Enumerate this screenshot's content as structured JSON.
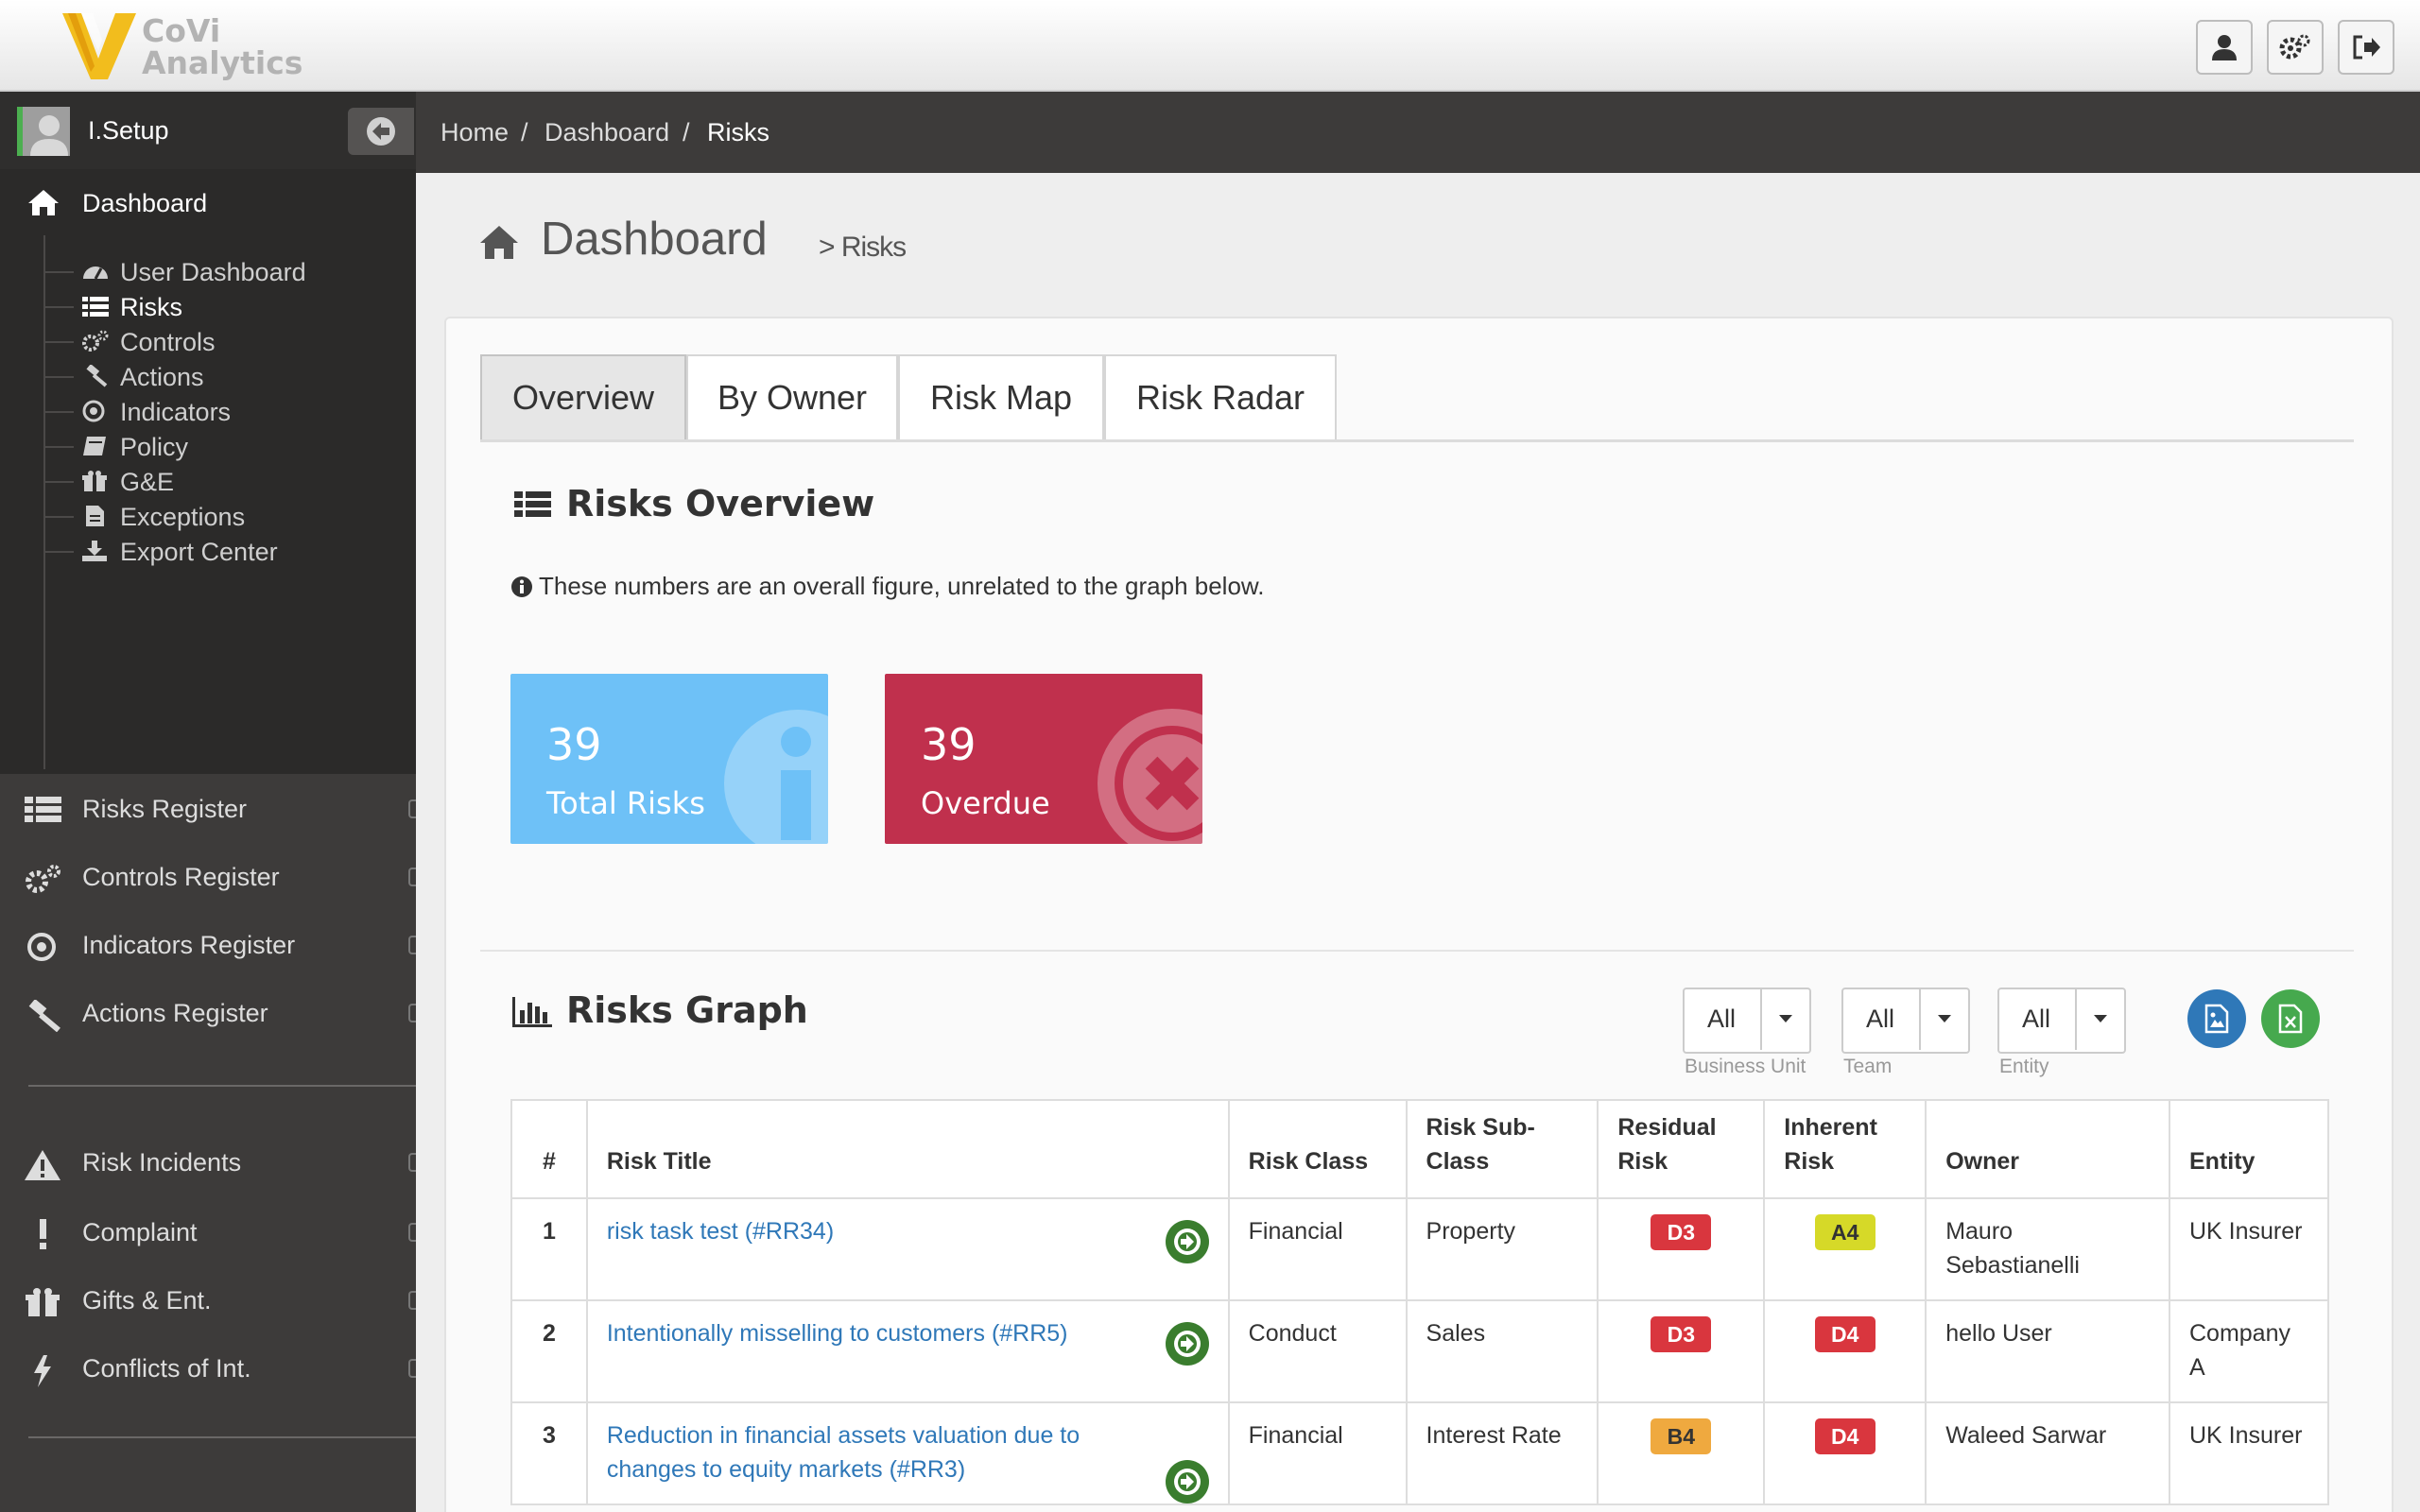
{
  "brand": {
    "line1": "CoVi",
    "line2": "Analytics"
  },
  "topbar": {
    "buttons": [
      "user-icon",
      "settings-icon",
      "logout-icon"
    ]
  },
  "sidebar": {
    "user": "I.Setup",
    "dashboard_label": "Dashboard",
    "submenu": [
      {
        "label": "User Dashboard",
        "icon": "tachometer-icon"
      },
      {
        "label": "Risks",
        "icon": "list-icon",
        "active": true
      },
      {
        "label": "Controls",
        "icon": "cogs-icon"
      },
      {
        "label": "Actions",
        "icon": "gavel-icon"
      },
      {
        "label": "Indicators",
        "icon": "target-icon"
      },
      {
        "label": "Policy",
        "icon": "book-icon"
      },
      {
        "label": "G&E",
        "icon": "gift-icon"
      },
      {
        "label": "Exceptions",
        "icon": "document-icon"
      },
      {
        "label": "Export Center",
        "icon": "download-icon"
      }
    ],
    "main": [
      {
        "label": "Risks Register",
        "icon": "list-icon"
      },
      {
        "label": "Controls Register",
        "icon": "cogs-icon"
      },
      {
        "label": "Indicators Register",
        "icon": "target-icon"
      },
      {
        "label": "Actions Register",
        "icon": "gavel-icon"
      }
    ],
    "main2": [
      {
        "label": "Risk Incidents",
        "icon": "warning-icon"
      },
      {
        "label": "Complaint",
        "icon": "exclamation-icon"
      },
      {
        "label": "Gifts & Ent.",
        "icon": "gift-icon"
      },
      {
        "label": "Conflicts of Int.",
        "icon": "bolt-icon"
      }
    ]
  },
  "breadcrumb": {
    "home": "Home",
    "dashboard": "Dashboard",
    "current": "Risks",
    "sep": "/"
  },
  "page": {
    "title": "Dashboard",
    "subtitle": "> Risks"
  },
  "tabs": [
    "Overview",
    "By Owner",
    "Risk Map",
    "Risk Radar"
  ],
  "overview": {
    "title": "Risks Overview",
    "note": "These numbers are an overall figure, unrelated to the graph below.",
    "stats": [
      {
        "value": "39",
        "label": "Total Risks",
        "color": "#6ec1f7"
      },
      {
        "value": "39",
        "label": "Overdue",
        "color": "#c0304d"
      }
    ]
  },
  "graph": {
    "title": "Risks Graph",
    "filters": [
      {
        "value": "All",
        "label": "Business Unit"
      },
      {
        "value": "All",
        "label": "Team"
      },
      {
        "value": "All",
        "label": "Entity"
      }
    ]
  },
  "table": {
    "headers": [
      "#",
      "Risk Title",
      "Risk Class",
      "Risk Sub-Class",
      "Residual Risk",
      "Inherent Risk",
      "Owner",
      "Entity"
    ],
    "rows": [
      {
        "num": "1",
        "title": "risk task test (#RR34)",
        "class": "Financial",
        "subclass": "Property",
        "residual": "D3",
        "residual_color": "#d9363e",
        "inherent": "A4",
        "inherent_color": "#d6d928",
        "owner": "Mauro Sebastianelli",
        "entity": "UK Insurer"
      },
      {
        "num": "2",
        "title": "Intentionally misselling to customers (#RR5)",
        "class": "Conduct",
        "subclass": "Sales",
        "residual": "D3",
        "residual_color": "#d9363e",
        "inherent": "D4",
        "inherent_color": "#d9363e",
        "owner": "hello User",
        "entity": "Company A"
      },
      {
        "num": "3",
        "title": "Reduction in financial assets valuation due to changes to equity markets (#RR3)",
        "class": "Financial",
        "subclass": "Interest Rate",
        "residual": "B4",
        "residual_color": "#efa93f",
        "inherent": "D4",
        "inherent_color": "#d9363e",
        "owner": "Waleed Sarwar",
        "entity": "UK Insurer"
      }
    ]
  }
}
